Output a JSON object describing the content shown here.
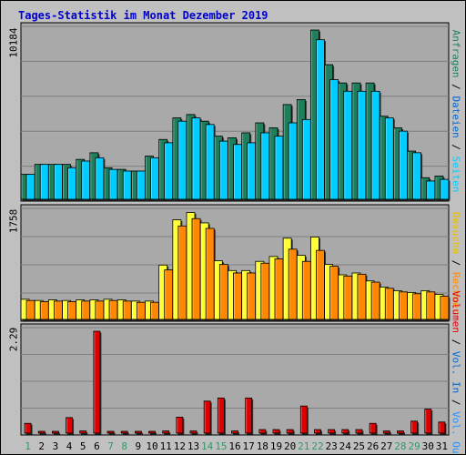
{
  "title": "Tages-Statistik im Monat Dezember 2019",
  "colors": {
    "background": "#c0c0c0",
    "panel": "#a9a9a9",
    "grid": "#808080",
    "anfragen": "#1e7f5a",
    "dateien": "#00ccff",
    "seiten": "#00ccff",
    "besuche": "#ffff33",
    "rechner": "#ff8800",
    "vol_out": "#1e90ff",
    "volumen": "#dd0000",
    "title": "#0000cc",
    "weekend": "#339966",
    "weekday": "#000000"
  },
  "legends": {
    "top": [
      {
        "text": "Anfragen",
        "color": "#1e7f5a"
      },
      {
        "text": " / ",
        "color": "#000000"
      },
      {
        "text": "Dateien",
        "color": "#0066cc"
      },
      {
        "text": " / ",
        "color": "#000000"
      },
      {
        "text": "Seiten",
        "color": "#00ccff"
      }
    ],
    "middle": [
      {
        "text": "Besuche",
        "color": "#e8c000"
      },
      {
        "text": " / ",
        "color": "#000000"
      },
      {
        "text": "Rechner",
        "color": "#ff8800"
      }
    ],
    "bottom": [
      {
        "text": "Volumen",
        "color": "#dd0000"
      },
      {
        "text": " / ",
        "color": "#000000"
      },
      {
        "text": "Vol. In",
        "color": "#0066cc"
      },
      {
        "text": " / ",
        "color": "#000000"
      },
      {
        "text": "Vol. Out",
        "color": "#1e90ff"
      },
      {
        "text": " / ",
        "color": "#000000"
      }
    ]
  },
  "chart_data": {
    "type": "bar",
    "title": "Tages-Statistik im Monat Dezember 2019",
    "categories": [
      "1",
      "2",
      "3",
      "4",
      "5",
      "6",
      "7",
      "8",
      "9",
      "10",
      "11",
      "12",
      "13",
      "14",
      "15",
      "16",
      "17",
      "18",
      "19",
      "20",
      "21",
      "22",
      "23",
      "24",
      "25",
      "26",
      "27",
      "28",
      "29",
      "30",
      "31"
    ],
    "weekend_days": [
      "1",
      "7",
      "8",
      "14",
      "15",
      "21",
      "22",
      "28",
      "29"
    ],
    "panels": [
      {
        "id": "top",
        "max_label": "10184",
        "ymax": 10184,
        "series": [
          {
            "name": "Anfragen",
            "color": "#1e7f5a",
            "values": [
              1500,
              2100,
              2100,
              2100,
              2400,
              2800,
              1900,
              1800,
              1700,
              2600,
              3600,
              4900,
              5100,
              4700,
              3800,
              3700,
              4000,
              4600,
              4300,
              5700,
              6000,
              10184,
              8100,
              7000,
              7000,
              7000,
              5000,
              4300,
              2900,
              1300,
              1400
            ]
          },
          {
            "name": "Dateien",
            "color": "#00ccff",
            "values": [
              1500,
              2100,
              2100,
              1900,
              2300,
              2500,
              1800,
              1700,
              1700,
              2500,
              3400,
              4700,
              4900,
              4500,
              3500,
              3300,
              3400,
              4000,
              3800,
              4600,
              4800,
              9600,
              7200,
              6500,
              6500,
              6500,
              4900,
              4100,
              2800,
              1100,
              1200
            ]
          },
          {
            "name": "Seiten",
            "color": "#00ccff",
            "values": [
              1500,
              2100,
              2100,
              1900,
              2300,
              2500,
              1800,
              1700,
              1700,
              2500,
              3400,
              4700,
              4900,
              4500,
              3500,
              3300,
              3400,
              4000,
              3800,
              4600,
              4800,
              9600,
              7200,
              6500,
              6500,
              6500,
              4900,
              4100,
              2800,
              1100,
              1200
            ]
          }
        ]
      },
      {
        "id": "middle",
        "max_label": "1758",
        "ymax": 1758,
        "series": [
          {
            "name": "Besuche",
            "color": "#ffff33",
            "values": [
              330,
              310,
              320,
              310,
              320,
              320,
              330,
              320,
              300,
              300,
              890,
              1630,
              1750,
              1580,
              960,
              800,
              800,
              950,
              1030,
              1330,
              1050,
              1350,
              900,
              730,
              760,
              630,
              530,
              470,
              440,
              470,
              410
            ]
          },
          {
            "name": "Rechner",
            "color": "#ff8800",
            "values": [
              310,
              290,
              300,
              290,
              300,
              300,
              310,
              300,
              280,
              280,
              810,
              1530,
              1650,
              1490,
              900,
              760,
              760,
              920,
              990,
              1150,
              950,
              1130,
              870,
              710,
              740,
              610,
              510,
              450,
              420,
              450,
              380
            ]
          }
        ]
      },
      {
        "id": "bottom",
        "max_label": "2.29",
        "ymax": 2.29,
        "series": [
          {
            "name": "Volumen",
            "color": "#dd0000",
            "values": [
              0.22,
              0.03,
              0.03,
              0.35,
              0.05,
              2.29,
              0.03,
              0.03,
              0.03,
              0.03,
              0.05,
              0.36,
              0.05,
              0.72,
              0.79,
              0.05,
              0.79,
              0.08,
              0.08,
              0.08,
              0.61,
              0.08,
              0.08,
              0.08,
              0.08,
              0.22,
              0.05,
              0.05,
              0.27,
              0.54,
              0.25
            ]
          }
        ]
      }
    ]
  }
}
